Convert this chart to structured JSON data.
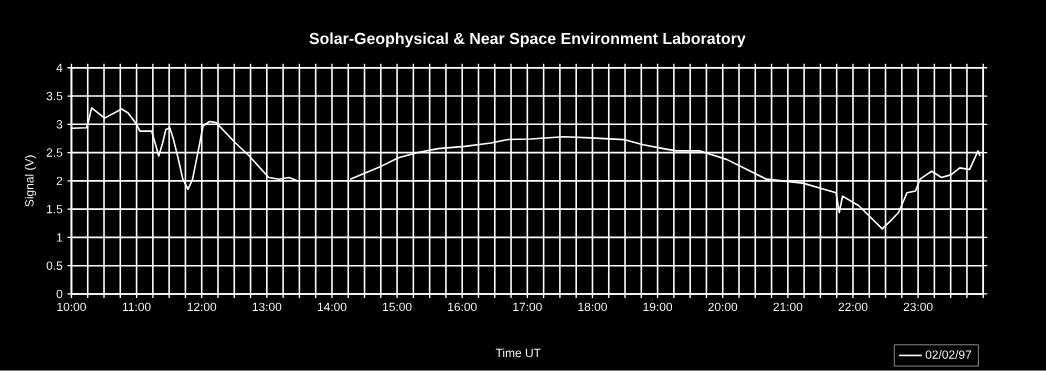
{
  "chart_data": {
    "type": "line",
    "title": "Solar-Geophysical & Near Space Environment Laboratory",
    "xlabel": "Time UT",
    "ylabel": "Signal (V)",
    "xlim": [
      10,
      24
    ],
    "ylim": [
      0,
      4
    ],
    "xticks": [
      {
        "value": 10,
        "label": "10:00"
      },
      {
        "value": 10.25,
        "label": null
      },
      {
        "value": 10.5,
        "label": null
      },
      {
        "value": 10.75,
        "label": null
      },
      {
        "value": 11,
        "label": "11:00"
      },
      {
        "value": 11.25,
        "label": null
      },
      {
        "value": 11.5,
        "label": null
      },
      {
        "value": 11.75,
        "label": null
      },
      {
        "value": 12,
        "label": "12:00"
      },
      {
        "value": 12.25,
        "label": null
      },
      {
        "value": 12.5,
        "label": null
      },
      {
        "value": 12.75,
        "label": null
      },
      {
        "value": 13,
        "label": "13:00"
      },
      {
        "value": 13.25,
        "label": null
      },
      {
        "value": 13.5,
        "label": null
      },
      {
        "value": 13.75,
        "label": null
      },
      {
        "value": 14,
        "label": "14:00"
      },
      {
        "value": 14.25,
        "label": null
      },
      {
        "value": 14.5,
        "label": null
      },
      {
        "value": 14.75,
        "label": null
      },
      {
        "value": 15,
        "label": "15:00"
      },
      {
        "value": 15.25,
        "label": null
      },
      {
        "value": 15.5,
        "label": null
      },
      {
        "value": 15.75,
        "label": null
      },
      {
        "value": 16,
        "label": "16:00"
      },
      {
        "value": 16.25,
        "label": null
      },
      {
        "value": 16.5,
        "label": null
      },
      {
        "value": 16.75,
        "label": null
      },
      {
        "value": 17,
        "label": "17:00"
      },
      {
        "value": 17.25,
        "label": null
      },
      {
        "value": 17.5,
        "label": null
      },
      {
        "value": 17.75,
        "label": null
      },
      {
        "value": 18,
        "label": "18:00"
      },
      {
        "value": 18.25,
        "label": null
      },
      {
        "value": 18.5,
        "label": null
      },
      {
        "value": 18.75,
        "label": null
      },
      {
        "value": 19,
        "label": "19:00"
      },
      {
        "value": 19.25,
        "label": null
      },
      {
        "value": 19.5,
        "label": null
      },
      {
        "value": 19.75,
        "label": null
      },
      {
        "value": 20,
        "label": "20:00"
      },
      {
        "value": 20.25,
        "label": null
      },
      {
        "value": 20.5,
        "label": null
      },
      {
        "value": 20.75,
        "label": null
      },
      {
        "value": 21,
        "label": "21:00"
      },
      {
        "value": 21.25,
        "label": null
      },
      {
        "value": 21.5,
        "label": null
      },
      {
        "value": 21.75,
        "label": null
      },
      {
        "value": 22,
        "label": "22:00"
      },
      {
        "value": 22.25,
        "label": null
      },
      {
        "value": 22.5,
        "label": null
      },
      {
        "value": 22.75,
        "label": null
      },
      {
        "value": 23,
        "label": "23:00"
      },
      {
        "value": 23.25,
        "label": null
      },
      {
        "value": 23.5,
        "label": null
      },
      {
        "value": 23.75,
        "label": null
      },
      {
        "value": 24,
        "label": null
      }
    ],
    "yticks": [
      0,
      0.5,
      1,
      1.5,
      2,
      2.5,
      3,
      3.5,
      4
    ],
    "grid": true,
    "legend": "bottom right",
    "line_style": "solid",
    "series": [
      {
        "name": "02/02/97",
        "color": "#ffffff",
        "x": [
          10.0,
          10.23,
          10.26,
          10.31,
          10.51,
          10.77,
          10.87,
          11.0,
          11.05,
          11.23,
          11.3,
          11.34,
          11.4,
          11.45,
          11.51,
          11.56,
          11.63,
          11.71,
          11.79,
          11.86,
          11.96,
          12.02,
          12.12,
          12.22,
          12.52,
          12.73,
          13.03,
          13.19,
          13.34,
          13.47,
          13.9,
          14.28,
          14.51,
          14.76,
          15.02,
          15.32,
          15.63,
          16.04,
          16.44,
          16.7,
          17.05,
          17.56,
          17.97,
          18.48,
          18.78,
          19.09,
          19.29,
          19.65,
          20.06,
          20.67,
          21.23,
          21.74,
          21.79,
          21.84,
          22.09,
          22.45,
          22.6,
          22.7,
          22.83,
          22.96,
          23.03,
          23.13,
          23.21,
          23.36,
          23.51,
          23.64,
          23.79,
          23.92,
          23.95
        ],
        "values": [
          2.93,
          2.94,
          3.05,
          3.29,
          3.11,
          3.27,
          3.2,
          3.0,
          2.88,
          2.88,
          2.61,
          2.44,
          2.67,
          2.91,
          2.94,
          2.76,
          2.44,
          2.03,
          1.85,
          2.03,
          2.61,
          2.97,
          3.05,
          3.03,
          2.67,
          2.44,
          2.06,
          2.03,
          2.06,
          2.0,
          null,
          2.03,
          2.14,
          2.26,
          2.41,
          2.5,
          2.57,
          2.61,
          2.67,
          2.73,
          2.74,
          2.78,
          2.76,
          2.73,
          2.64,
          2.57,
          2.53,
          2.53,
          2.38,
          2.03,
          1.96,
          1.79,
          1.44,
          1.73,
          1.56,
          1.15,
          1.32,
          1.44,
          1.79,
          1.82,
          2.03,
          2.11,
          2.17,
          2.06,
          2.11,
          2.23,
          2.2,
          2.53,
          2.44
        ]
      }
    ]
  }
}
